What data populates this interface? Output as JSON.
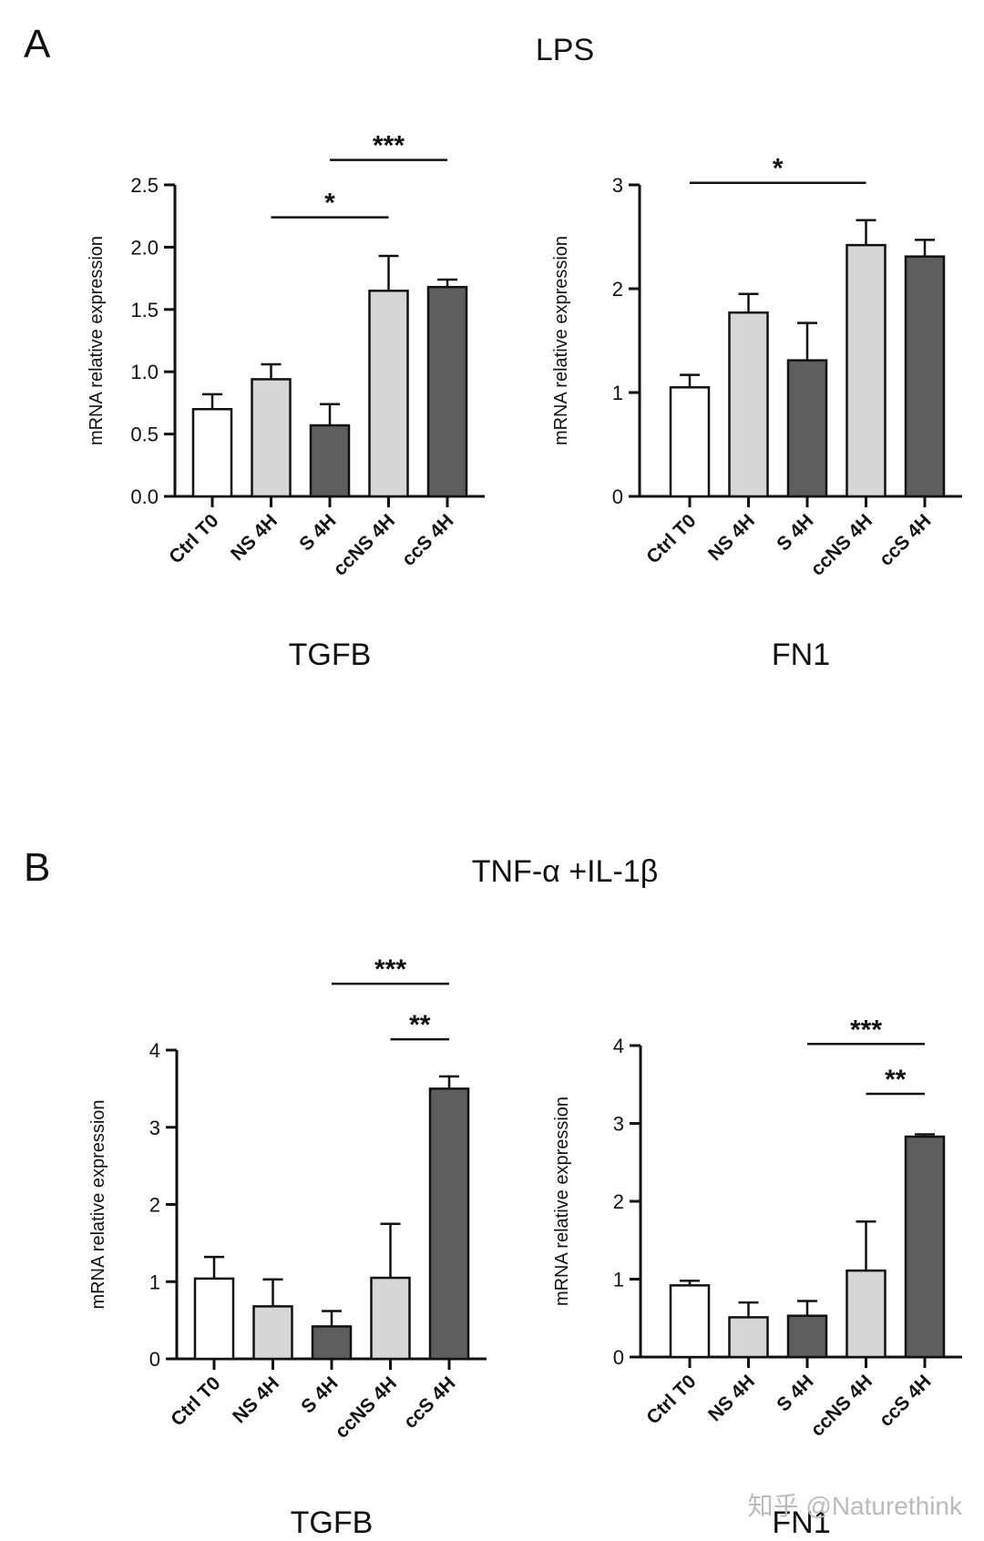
{
  "panels": [
    {
      "letter": "A",
      "title": "LPS"
    },
    {
      "letter": "B",
      "title": "TNF-α +IL-1β"
    }
  ],
  "watermark": "知乎 @Naturethink",
  "colors": {
    "white": "#ffffff",
    "light": "#d6d6d6",
    "dark": "#5e5e5e",
    "axis": "#111111"
  },
  "chart_data": [
    {
      "type": "bar",
      "title": "TGFB",
      "panel": "A",
      "categories": [
        "Ctrl T0",
        "NS 4H",
        "S 4H",
        "ccNS 4H",
        "ccS 4H"
      ],
      "fills": [
        "white",
        "light",
        "dark",
        "light",
        "dark"
      ],
      "values": [
        0.7,
        0.94,
        0.57,
        1.65,
        1.68
      ],
      "errors": [
        0.12,
        0.12,
        0.17,
        0.28,
        0.06
      ],
      "ylabel": "mRNA relative expression",
      "ylim": [
        0,
        2.5
      ],
      "yticks": [
        "0.0",
        "0.5",
        "1.0",
        "1.5",
        "2.0",
        "2.5"
      ],
      "significance": [
        {
          "from": 1,
          "to": 3,
          "label": "*",
          "y": 2.24
        },
        {
          "from": 2,
          "to": 4,
          "label": "***",
          "y": 2.7
        }
      ]
    },
    {
      "type": "bar",
      "title": "FN1",
      "panel": "A",
      "categories": [
        "Ctrl T0",
        "NS 4H",
        "S 4H",
        "ccNS 4H",
        "ccS 4H"
      ],
      "fills": [
        "white",
        "light",
        "dark",
        "light",
        "dark"
      ],
      "values": [
        1.05,
        1.77,
        1.31,
        2.42,
        2.31
      ],
      "errors": [
        0.12,
        0.18,
        0.36,
        0.24,
        0.16
      ],
      "ylabel": "mRNA relative expression",
      "ylim": [
        0,
        3
      ],
      "yticks": [
        "0",
        "1",
        "2",
        "3"
      ],
      "significance": [
        {
          "from": 0,
          "to": 3,
          "label": "*",
          "y": 3.02
        }
      ]
    },
    {
      "type": "bar",
      "title": "TGFB",
      "panel": "B",
      "categories": [
        "Ctrl T0",
        "NS 4H",
        "S 4H",
        "ccNS 4H",
        "ccS 4H"
      ],
      "fills": [
        "white",
        "light",
        "dark",
        "light",
        "dark"
      ],
      "values": [
        1.04,
        0.68,
        0.42,
        1.05,
        3.5
      ],
      "errors": [
        0.28,
        0.35,
        0.2,
        0.7,
        0.16
      ],
      "ylabel": "mRNA relative expression",
      "ylim": [
        0,
        4
      ],
      "yticks": [
        "0",
        "1",
        "2",
        "3",
        "4"
      ],
      "significance": [
        {
          "from": 3,
          "to": 4,
          "label": "**",
          "y": 4.14
        },
        {
          "from": 2,
          "to": 4,
          "label": "***",
          "y": 4.86
        }
      ]
    },
    {
      "type": "bar",
      "title": "FN1",
      "panel": "B",
      "categories": [
        "Ctrl T0",
        "NS 4H",
        "S 4H",
        "ccNS 4H",
        "ccS 4H"
      ],
      "fills": [
        "white",
        "light",
        "dark",
        "light",
        "dark"
      ],
      "values": [
        0.92,
        0.51,
        0.53,
        1.11,
        2.83
      ],
      "errors": [
        0.06,
        0.19,
        0.19,
        0.63,
        0.03
      ],
      "ylabel": "mRNA relative expression",
      "ylim": [
        0,
        4
      ],
      "yticks": [
        "0",
        "1",
        "2",
        "3",
        "4"
      ],
      "significance": [
        {
          "from": 3,
          "to": 4,
          "label": "**",
          "y": 3.38
        },
        {
          "from": 2,
          "to": 4,
          "label": "***",
          "y": 4.02
        }
      ]
    }
  ]
}
